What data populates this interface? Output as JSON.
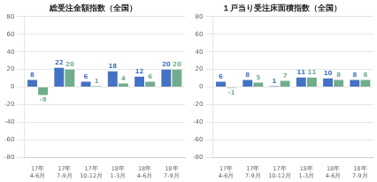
{
  "chart_data": [
    {
      "type": "bar",
      "title": "総受注金額指数（全国）",
      "categories": [
        "17年\n4-6月",
        "17年\n7-9月",
        "17年\n10-12月",
        "18年\n1-3月",
        "18年\n4-6月",
        "18年\n7-9月"
      ],
      "series": [
        {
          "color": "#4472C4",
          "values": [
            8,
            22,
            6,
            18,
            12,
            20
          ]
        },
        {
          "color": "#70AD8A",
          "values": [
            -9,
            20,
            1,
            4,
            6,
            20
          ]
        }
      ],
      "ylim": [
        -80,
        80
      ],
      "yticks": [
        -80,
        -60,
        -40,
        -20,
        0,
        20,
        40,
        60,
        80
      ],
      "grid": true,
      "data_labels": true
    },
    {
      "type": "bar",
      "title": "１戸当り受注床面積指数（全国）",
      "categories": [
        "17年\n4-6月",
        "17年\n7-9月",
        "17年\n10-12月",
        "18年\n1-3月",
        "18年\n4-6月",
        "18年\n7-9月"
      ],
      "series": [
        {
          "color": "#4472C4",
          "values": [
            6,
            8,
            1,
            11,
            10,
            8
          ]
        },
        {
          "color": "#70AD8A",
          "values": [
            -1,
            5,
            7,
            11,
            8,
            8
          ]
        }
      ],
      "ylim": [
        -80,
        80
      ],
      "yticks": [
        -80,
        -60,
        -40,
        -20,
        0,
        20,
        40,
        60,
        80
      ],
      "grid": true,
      "data_labels": true
    }
  ]
}
